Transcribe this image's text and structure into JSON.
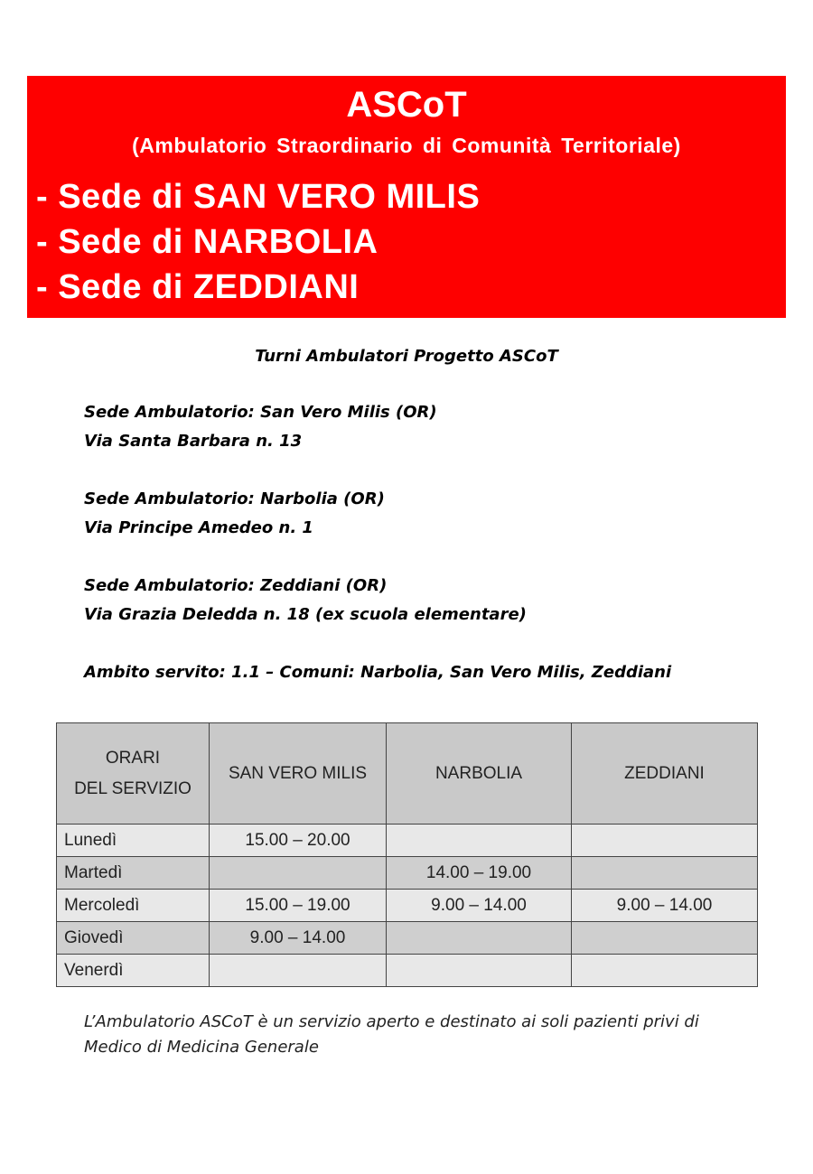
{
  "banner": {
    "title": "ASCoT",
    "subtitle": "(Ambulatorio Straordinario di Comunità Territoriale)",
    "sedi": [
      "- Sede di SAN VERO MILIS",
      "- Sede di NARBOLIA",
      "- Sede di ZEDDIANI"
    ],
    "color": "#fe0000"
  },
  "heading": "Turni Ambulatori Progetto ASCoT",
  "locations": [
    {
      "name": "Sede Ambulatorio: San Vero Milis (OR)",
      "address": "Via Santa Barbara n. 13"
    },
    {
      "name": "Sede Ambulatorio: Narbolia (OR)",
      "address": "Via Principe Amedeo n. 1"
    },
    {
      "name": "Sede Ambulatorio: Zeddiani (OR)",
      "address": "Via Grazia Deledda n. 18 (ex scuola elementare)"
    }
  ],
  "ambito": "Ambito servito: 1.1 – Comuni: Narbolia, San Vero Milis, Zeddiani",
  "table": {
    "headers": [
      "ORARI",
      "DEL SERVIZIO",
      "SAN VERO MILIS",
      "NARBOLIA",
      "ZEDDIANI"
    ],
    "rows": [
      {
        "day": "Lunedì",
        "cells": [
          "15.00 – 20.00",
          "",
          ""
        ]
      },
      {
        "day": "Martedì",
        "cells": [
          "",
          "14.00 – 19.00",
          ""
        ]
      },
      {
        "day": "Mercoledì",
        "cells": [
          "15.00 – 19.00",
          "9.00 – 14.00",
          "9.00 – 14.00"
        ]
      },
      {
        "day": "Giovedì",
        "cells": [
          "9.00 – 14.00",
          "",
          ""
        ]
      },
      {
        "day": "Venerdì",
        "cells": [
          "",
          "",
          ""
        ]
      }
    ]
  },
  "footer": "L’Ambulatorio ASCoT è un servizio aperto e destinato ai soli pazienti privi di Medico di Medicina Generale"
}
